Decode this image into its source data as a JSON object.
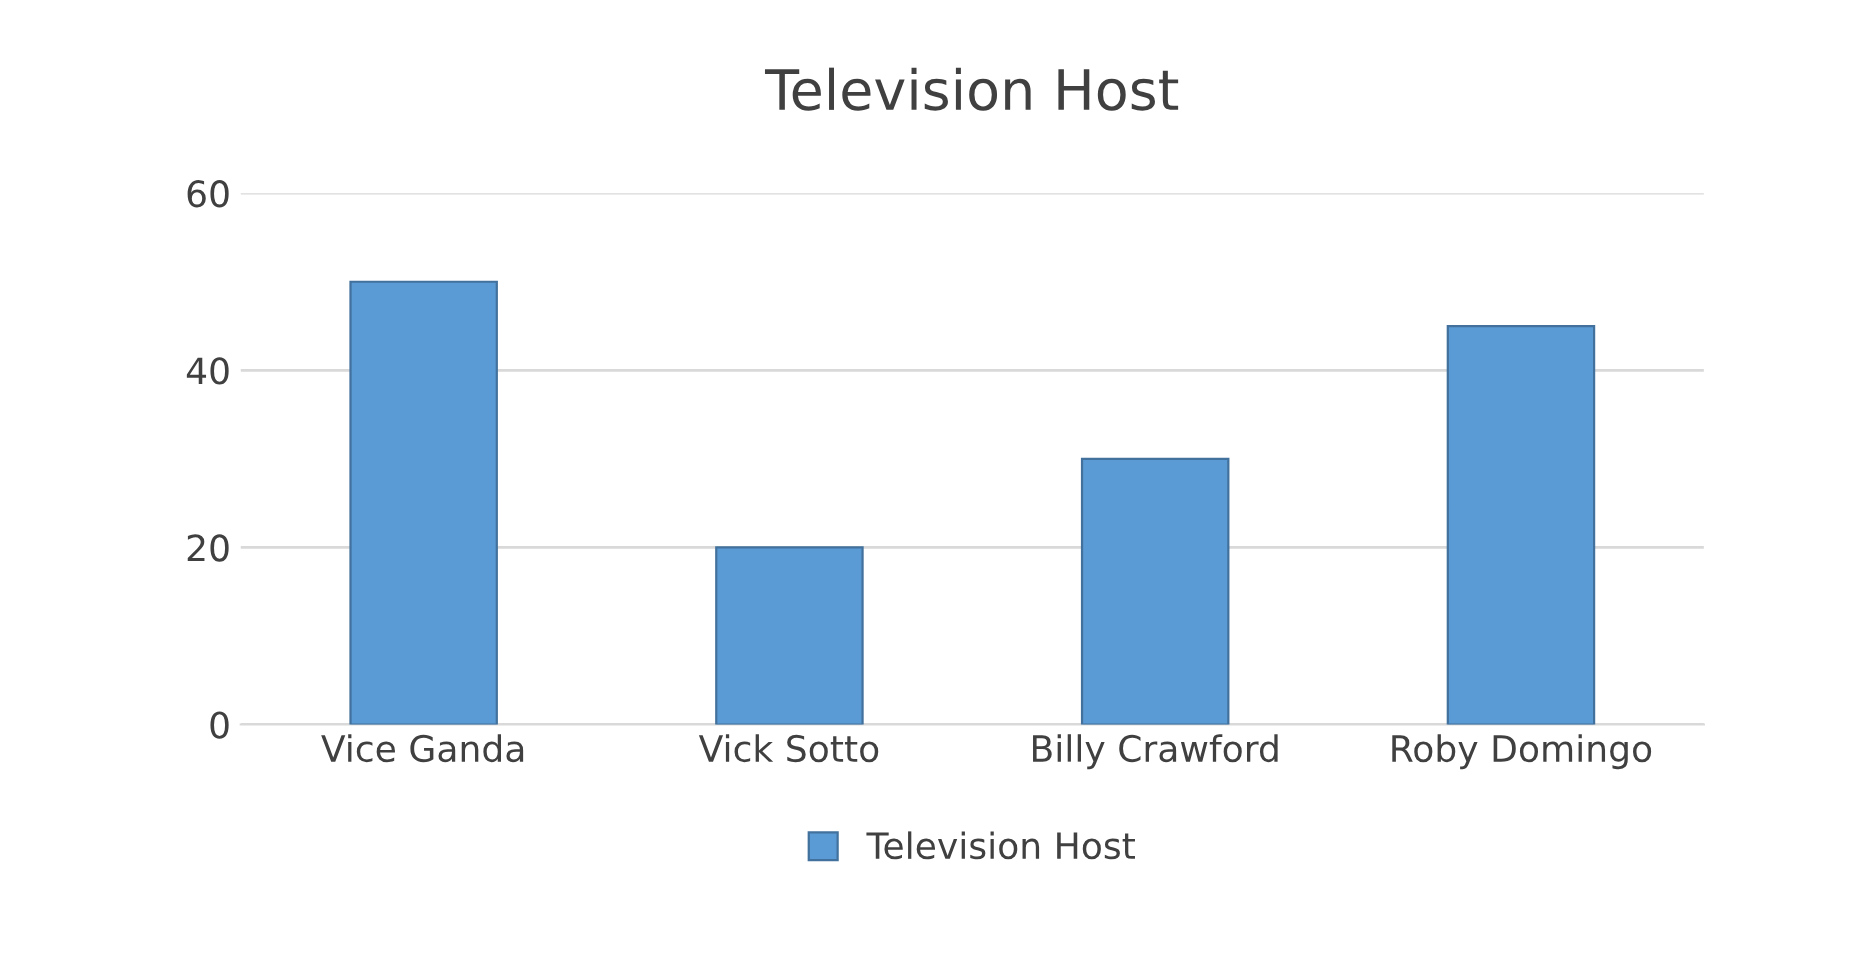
{
  "chart_data": {
    "type": "bar",
    "title": "Television Host",
    "categories": [
      "Vice Ganda",
      "Vick Sotto",
      "Billy Crawford",
      "Roby Domingo"
    ],
    "series": [
      {
        "name": "Television Host",
        "color": "#5b9bd5",
        "values": [
          50,
          20,
          30,
          45
        ]
      }
    ],
    "ylim": [
      0,
      60
    ],
    "yticks": [
      0,
      20,
      40,
      60
    ],
    "grid": "y",
    "legend": "bottom"
  }
}
